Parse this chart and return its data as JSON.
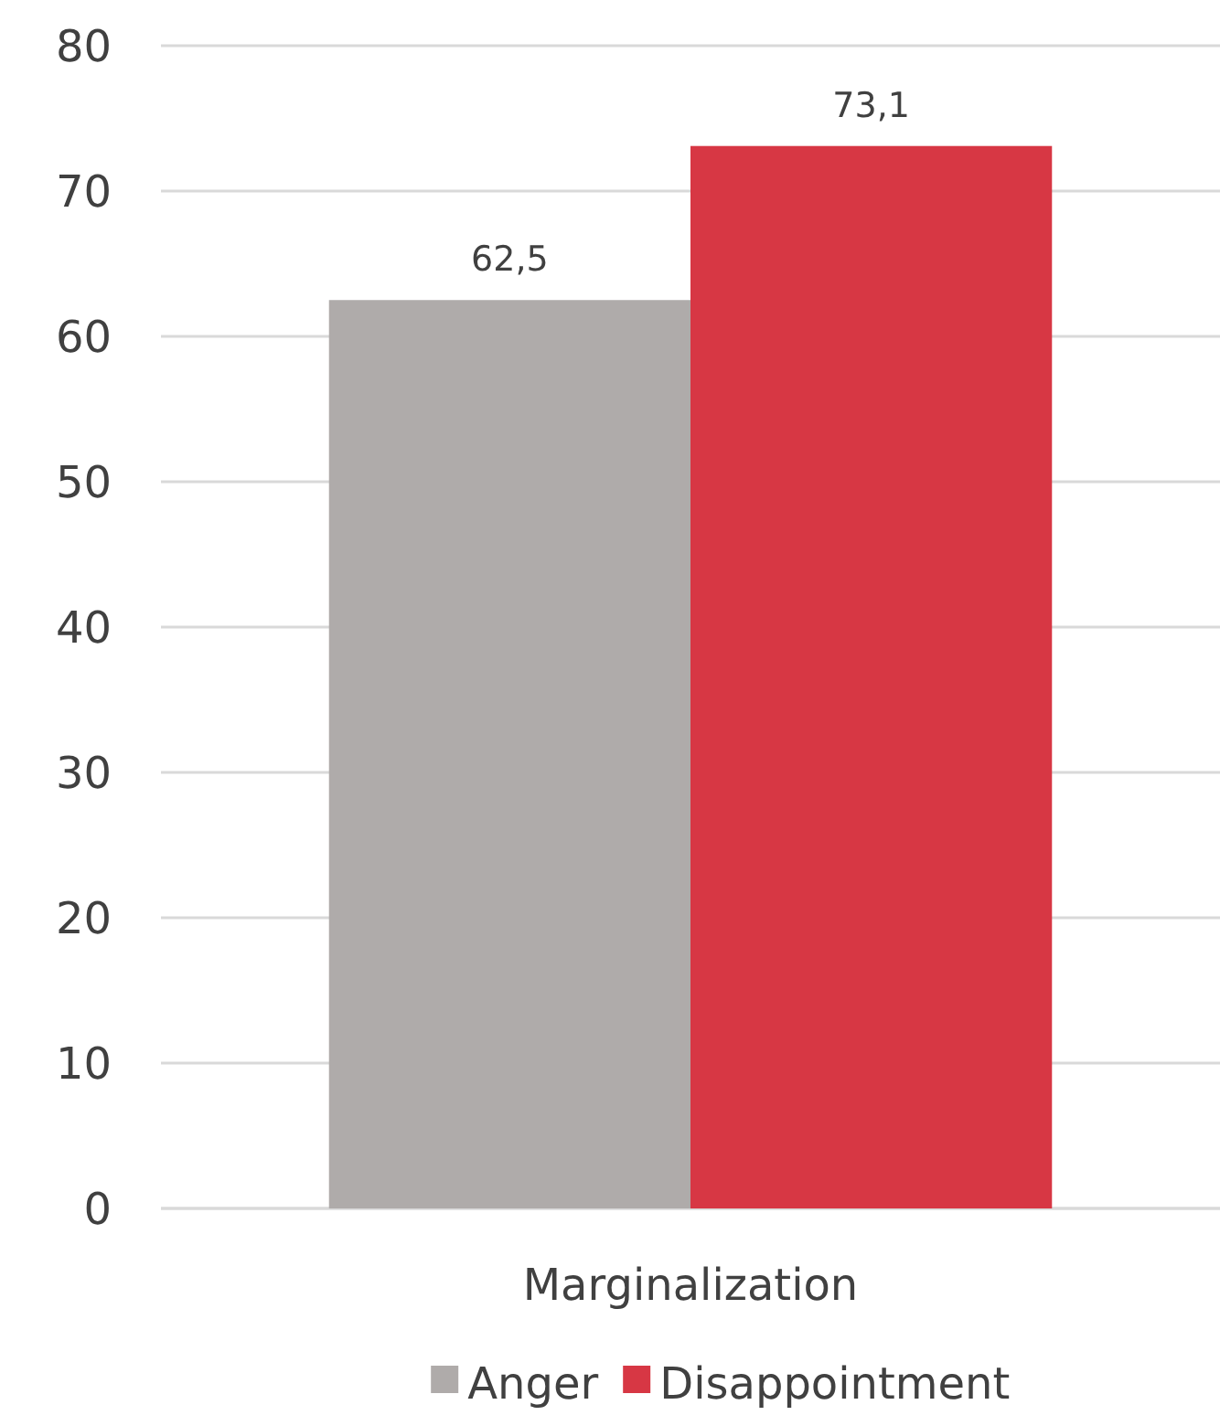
{
  "chart_data": {
    "type": "bar",
    "categories": [
      "Marginalization"
    ],
    "series": [
      {
        "name": "Anger",
        "color": "#afabaa",
        "values": [
          62.5
        ],
        "value_labels": [
          "62,5"
        ]
      },
      {
        "name": "Disappointment",
        "color": "#d73744",
        "values": [
          73.1
        ],
        "value_labels": [
          "73,1"
        ]
      }
    ],
    "ylim": [
      0,
      80
    ],
    "yticks": [
      0,
      10,
      20,
      30,
      40,
      50,
      60,
      70,
      80
    ],
    "grid": "y",
    "legend": "bottom"
  }
}
